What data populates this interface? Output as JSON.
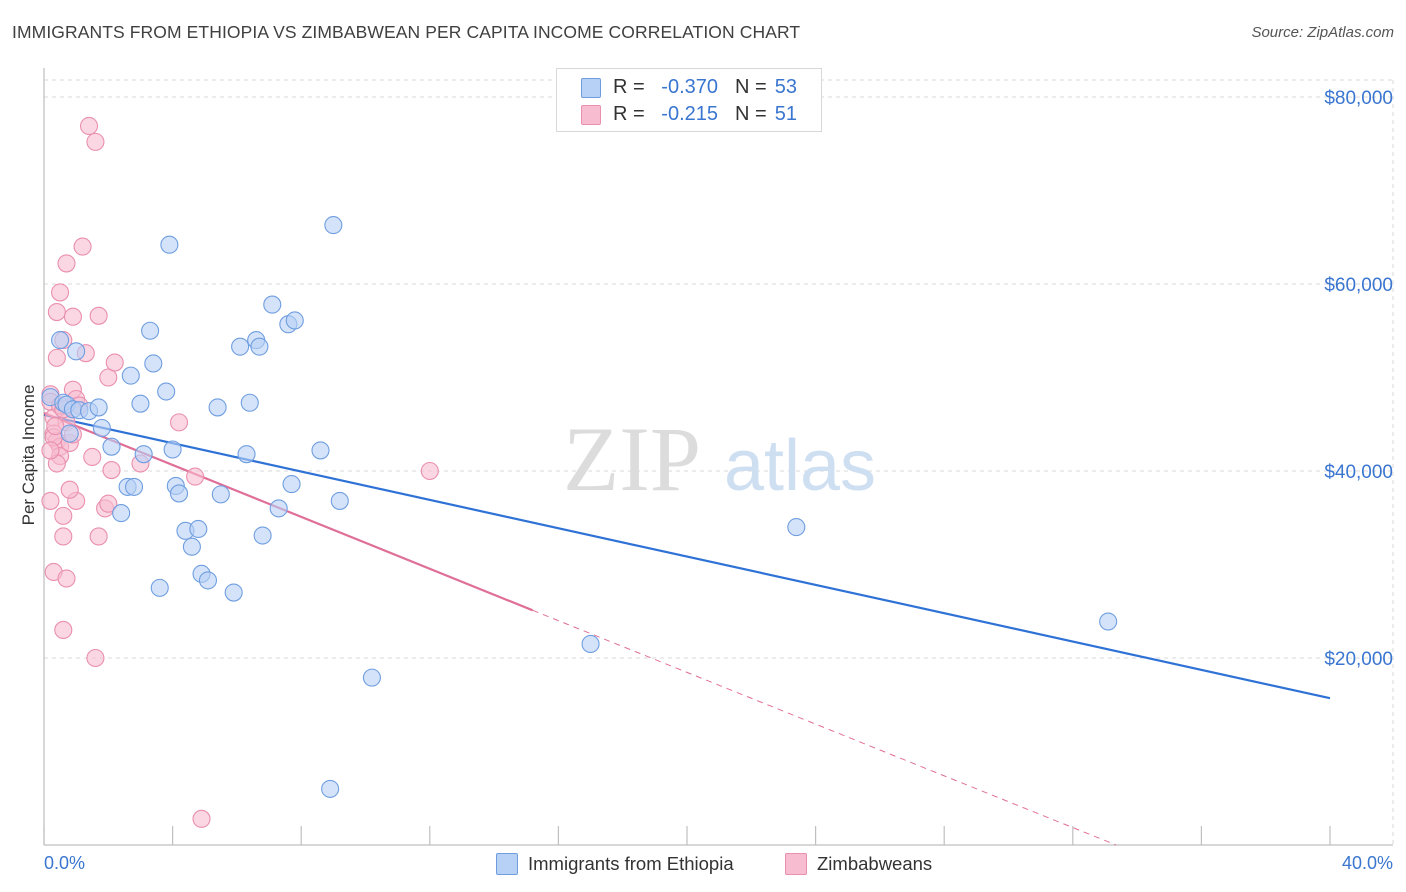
{
  "title": "IMMIGRANTS FROM ETHIOPIA VS ZIMBABWEAN PER CAPITA INCOME CORRELATION CHART",
  "source": "Source: ZipAtlas.com",
  "watermark": {
    "zip": "ZIP",
    "atlas": "atlas"
  },
  "colors": {
    "blue_fill": "#b7d0f5",
    "blue_stroke": "#6f9ee0",
    "blue_line": "#2f72d6",
    "pink_fill": "#f7bcd0",
    "pink_stroke": "#ea8fae",
    "pink_line": "#e06f98",
    "axis_label": "#3a76d0",
    "grid": "#d9d9d9"
  },
  "legend": {
    "rows": [
      {
        "r_label": "R =",
        "r_value": "-0.370",
        "n_label": "N =",
        "n_value": "53"
      },
      {
        "r_label": "R =",
        "r_value": "-0.215",
        "n_label": "N =",
        "n_value": "51"
      }
    ]
  },
  "bottom_legend": {
    "series1": "Immigrants from Ethiopia",
    "series2": "Zimbabweans"
  },
  "chart_data": {
    "type": "scatter",
    "title": "IMMIGRANTS FROM ETHIOPIA VS ZIMBABWEAN PER CAPITA INCOME CORRELATION CHART",
    "xlabel": "",
    "ylabel": "Per Capita Income",
    "xlim": [
      0,
      40
    ],
    "ylim": [
      0,
      82000
    ],
    "x_tick_labels": [
      "0.0%",
      "40.0%"
    ],
    "y_ticks": [
      20000,
      40000,
      60000,
      80000
    ],
    "y_tick_labels": [
      "$20,000",
      "$40,000",
      "$60,000",
      "$80,000"
    ],
    "series": [
      {
        "name": "Immigrants from Ethiopia",
        "r": -0.37,
        "n": 53,
        "trend": {
          "x": [
            0,
            40
          ],
          "y": [
            46000,
            15700
          ]
        },
        "points": [
          [
            0.2,
            47900
          ],
          [
            0.5,
            54000
          ],
          [
            0.6,
            47300
          ],
          [
            0.7,
            47100
          ],
          [
            0.9,
            46600
          ],
          [
            1.1,
            46500
          ],
          [
            1.0,
            52800
          ],
          [
            1.4,
            46400
          ],
          [
            0.8,
            44000
          ],
          [
            1.8,
            44600
          ],
          [
            2.1,
            42600
          ],
          [
            2.4,
            35500
          ],
          [
            2.6,
            38300
          ],
          [
            2.7,
            50200
          ],
          [
            2.8,
            38300
          ],
          [
            3.0,
            47200
          ],
          [
            3.1,
            41800
          ],
          [
            3.3,
            55000
          ],
          [
            3.4,
            51500
          ],
          [
            3.6,
            27500
          ],
          [
            3.8,
            48500
          ],
          [
            3.9,
            64200
          ],
          [
            4.1,
            38400
          ],
          [
            4.2,
            37600
          ],
          [
            4.4,
            33600
          ],
          [
            4.6,
            31900
          ],
          [
            4.8,
            33800
          ],
          [
            4.9,
            29000
          ],
          [
            5.1,
            28300
          ],
          [
            5.4,
            46800
          ],
          [
            5.5,
            37500
          ],
          [
            5.9,
            27000
          ],
          [
            6.1,
            53300
          ],
          [
            6.3,
            41800
          ],
          [
            6.4,
            47300
          ],
          [
            6.6,
            54000
          ],
          [
            6.8,
            33100
          ],
          [
            6.7,
            53300
          ],
          [
            7.1,
            57800
          ],
          [
            7.3,
            36000
          ],
          [
            7.6,
            55700
          ],
          [
            7.7,
            38600
          ],
          [
            7.8,
            56100
          ],
          [
            8.6,
            42200
          ],
          [
            8.9,
            6000
          ],
          [
            9.0,
            66300
          ],
          [
            9.2,
            36800
          ],
          [
            10.2,
            17900
          ],
          [
            17.0,
            21500
          ],
          [
            23.4,
            34000
          ],
          [
            33.1,
            23900
          ],
          [
            1.7,
            46800
          ],
          [
            4.0,
            42300
          ]
        ]
      },
      {
        "name": "Zimbabweans",
        "r": -0.215,
        "n": 51,
        "trend": {
          "x": [
            0,
            15.2
          ],
          "y": [
            46200,
            25100
          ]
        },
        "trend_dashed": {
          "x": [
            15.2,
            40
          ],
          "y": [
            25100,
            -9200
          ]
        },
        "points": [
          [
            0.2,
            48200
          ],
          [
            0.2,
            47400
          ],
          [
            0.3,
            45700
          ],
          [
            0.3,
            44000
          ],
          [
            0.4,
            43200
          ],
          [
            0.5,
            42600
          ],
          [
            0.5,
            41600
          ],
          [
            0.4,
            40800
          ],
          [
            0.2,
            36800
          ],
          [
            0.3,
            29200
          ],
          [
            0.4,
            57000
          ],
          [
            0.4,
            52100
          ],
          [
            0.5,
            59100
          ],
          [
            0.6,
            54000
          ],
          [
            0.7,
            62200
          ],
          [
            0.6,
            35200
          ],
          [
            0.6,
            33000
          ],
          [
            0.6,
            23000
          ],
          [
            0.7,
            28500
          ],
          [
            0.7,
            45200
          ],
          [
            0.8,
            43000
          ],
          [
            0.9,
            56500
          ],
          [
            0.9,
            48700
          ],
          [
            1.0,
            47700
          ],
          [
            1.0,
            36800
          ],
          [
            1.2,
            64000
          ],
          [
            1.1,
            47000
          ],
          [
            1.3,
            52600
          ],
          [
            1.4,
            76900
          ],
          [
            1.6,
            75200
          ],
          [
            1.6,
            20000
          ],
          [
            1.7,
            56600
          ],
          [
            1.7,
            33000
          ],
          [
            1.9,
            36000
          ],
          [
            2.0,
            50000
          ],
          [
            2.0,
            36500
          ],
          [
            2.1,
            40100
          ],
          [
            2.2,
            51600
          ],
          [
            3.0,
            40800
          ],
          [
            4.2,
            45200
          ],
          [
            4.7,
            39400
          ],
          [
            4.9,
            2800
          ],
          [
            12.0,
            40000
          ],
          [
            0.3,
            43600
          ],
          [
            0.5,
            47000
          ],
          [
            0.2,
            42200
          ],
          [
            0.8,
            38000
          ],
          [
            0.6,
            46600
          ],
          [
            1.5,
            41500
          ],
          [
            0.9,
            43900
          ],
          [
            0.35,
            44800
          ]
        ]
      }
    ]
  }
}
